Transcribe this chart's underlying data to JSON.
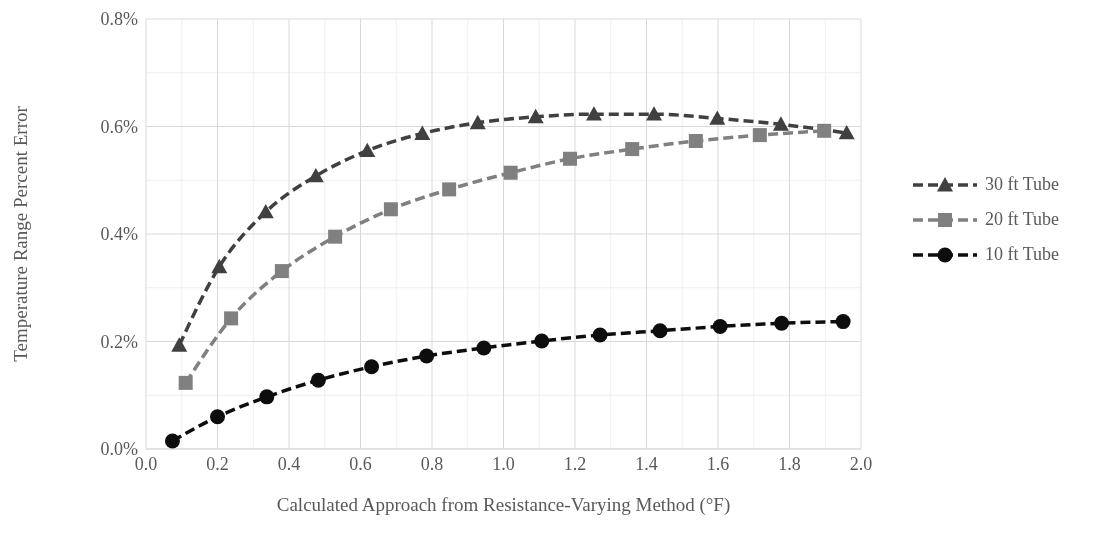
{
  "chart_data": {
    "type": "line",
    "xlabel": "Calculated Approach from Resistance-Varying Method (°F)",
    "ylabel": "Temperature Range Percent Error",
    "xlim": [
      0,
      2
    ],
    "xticks": [
      {
        "value": 0,
        "label": "0.0"
      },
      {
        "value": 0.2,
        "label": "0.2"
      },
      {
        "value": 0.4,
        "label": "0.4"
      },
      {
        "value": 0.6,
        "label": "0.6"
      },
      {
        "value": 0.8,
        "label": "0.8"
      },
      {
        "value": 1,
        "label": "1.0"
      },
      {
        "value": 1.2,
        "label": "1.2"
      },
      {
        "value": 1.4,
        "label": "1.4"
      },
      {
        "value": 1.6,
        "label": "1.6"
      },
      {
        "value": 1.8,
        "label": "1.8"
      },
      {
        "value": 2,
        "label": "2.0"
      }
    ],
    "ylim": [
      0,
      0.8
    ],
    "yticks": [
      {
        "value": 0,
        "label": "0.0%"
      },
      {
        "value": 0.2,
        "label": "0.2%"
      },
      {
        "value": 0.4,
        "label": "0.4%"
      },
      {
        "value": 0.6,
        "label": "0.6%"
      },
      {
        "value": 0.8,
        "label": "0.8%"
      }
    ],
    "grid": true,
    "legend": "right",
    "line_style": "dashed",
    "series": [
      {
        "name": "30 ft Tube",
        "color": "#404040",
        "marker": "triangle",
        "x": [
          0.093,
          0.205,
          0.335,
          0.475,
          0.619,
          0.773,
          0.928,
          1.09,
          1.253,
          1.421,
          1.598,
          1.776,
          1.96
        ],
        "values": [
          0.193,
          0.339,
          0.441,
          0.508,
          0.555,
          0.587,
          0.607,
          0.618,
          0.623,
          0.623,
          0.615,
          0.604,
          0.588
        ]
      },
      {
        "name": "20 ft Tube",
        "color": "#808080",
        "marker": "square",
        "x": [
          0.111,
          0.238,
          0.38,
          0.529,
          0.685,
          0.848,
          1.02,
          1.186,
          1.36,
          1.538,
          1.717,
          1.897
        ],
        "values": [
          0.123,
          0.243,
          0.331,
          0.395,
          0.446,
          0.483,
          0.514,
          0.54,
          0.558,
          0.573,
          0.584,
          0.592
        ]
      },
      {
        "name": "10 ft Tube",
        "color": "#0d0d0d",
        "marker": "circle",
        "x": [
          0.074,
          0.2,
          0.338,
          0.482,
          0.631,
          0.785,
          0.945,
          1.107,
          1.27,
          1.438,
          1.606,
          1.778,
          1.95
        ],
        "values": [
          0.015,
          0.06,
          0.097,
          0.128,
          0.153,
          0.173,
          0.188,
          0.201,
          0.212,
          0.22,
          0.228,
          0.234,
          0.237
        ]
      }
    ]
  }
}
